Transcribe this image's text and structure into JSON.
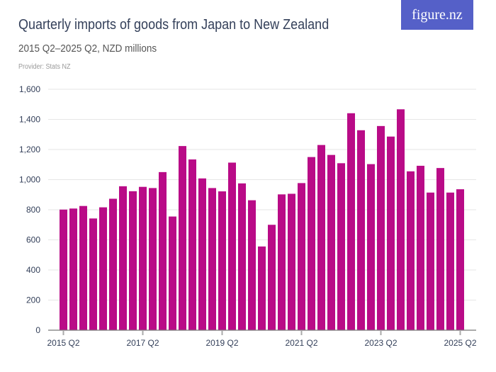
{
  "header": {
    "title": "Quarterly imports of goods from Japan to New Zealand",
    "subtitle": "2015 Q2–2025 Q2, NZD millions",
    "provider": "Provider: Stats NZ",
    "logo": "figure.nz"
  },
  "colors": {
    "bar": "#b90b87",
    "logo_bg": "#5560c8",
    "title": "#34405a",
    "grid": "#e6e6e6"
  },
  "chart_data": {
    "type": "bar",
    "title": "Quarterly imports of goods from Japan to New Zealand",
    "subtitle": "2015 Q2–2025 Q2, NZD millions",
    "ylim": [
      0,
      1600
    ],
    "yticks": [
      0,
      200,
      400,
      600,
      800,
      1000,
      1200,
      1400,
      1600
    ],
    "ytick_labels": [
      "0",
      "200",
      "400",
      "600",
      "800",
      "1,000",
      "1,200",
      "1,400",
      "1,600"
    ],
    "xtick_labels": [
      {
        "label": "2015 Q2",
        "index": 0
      },
      {
        "label": "2017 Q2",
        "index": 8
      },
      {
        "label": "2019 Q2",
        "index": 16
      },
      {
        "label": "2021 Q2",
        "index": 24
      },
      {
        "label": "2023 Q2",
        "index": 32
      },
      {
        "label": "2025 Q2",
        "index": 40
      }
    ],
    "grid": true,
    "categories": [
      "2015 Q2",
      "2015 Q3",
      "2015 Q4",
      "2016 Q1",
      "2016 Q2",
      "2016 Q3",
      "2016 Q4",
      "2017 Q1",
      "2017 Q2",
      "2017 Q3",
      "2017 Q4",
      "2018 Q1",
      "2018 Q2",
      "2018 Q3",
      "2018 Q4",
      "2019 Q1",
      "2019 Q2",
      "2019 Q3",
      "2019 Q4",
      "2020 Q1",
      "2020 Q2",
      "2020 Q3",
      "2020 Q4",
      "2021 Q1",
      "2021 Q2",
      "2021 Q3",
      "2021 Q4",
      "2022 Q1",
      "2022 Q2",
      "2022 Q3",
      "2022 Q4",
      "2023 Q1",
      "2023 Q2",
      "2023 Q3",
      "2023 Q4",
      "2024 Q1",
      "2024 Q2",
      "2024 Q3",
      "2024 Q4",
      "2025 Q1",
      "2025 Q2"
    ],
    "values": [
      801,
      808,
      825,
      742,
      816,
      873,
      956,
      923,
      952,
      944,
      1050,
      755,
      1223,
      1134,
      1008,
      944,
      922,
      1113,
      975,
      863,
      556,
      700,
      902,
      906,
      977,
      1150,
      1230,
      1164,
      1109,
      1441,
      1328,
      1103,
      1356,
      1286,
      1467,
      1055,
      1092,
      914,
      1077,
      914,
      936
    ]
  }
}
